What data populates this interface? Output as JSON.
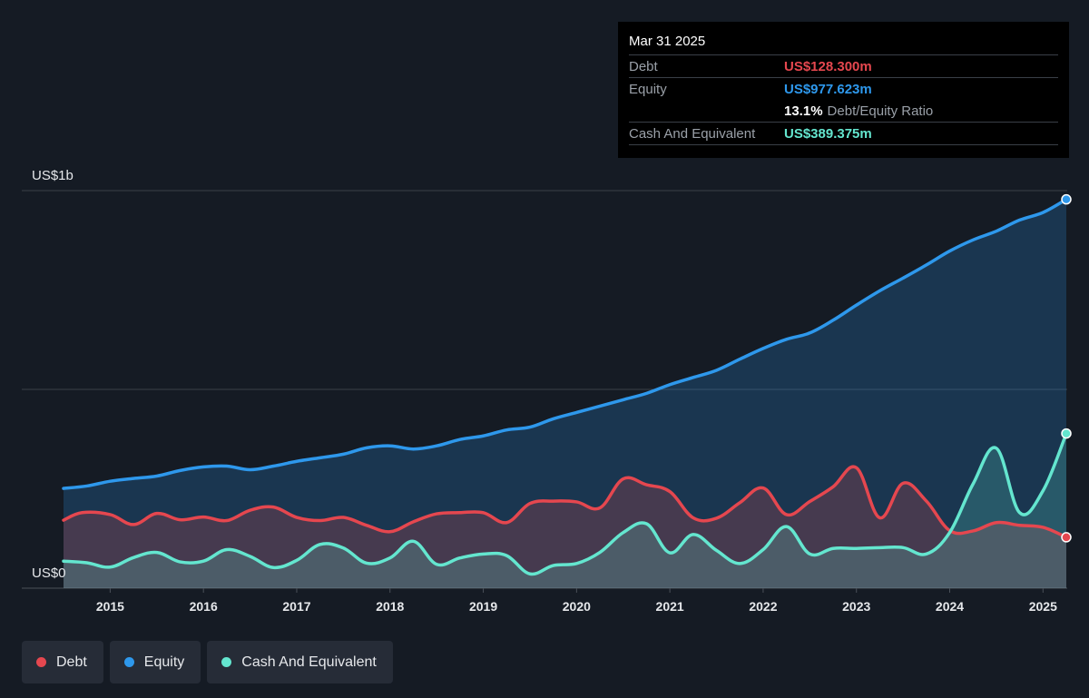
{
  "colors": {
    "debt": "#e5474f",
    "equity": "#2e98ec",
    "cash": "#64e6cf",
    "background": "#151b24",
    "tooltip_bg": "#000000"
  },
  "tooltip": {
    "date": "Mar 31 2025",
    "debt_label": "Debt",
    "debt_value": "US$128.300m",
    "equity_label": "Equity",
    "equity_value": "US$977.623m",
    "ratio_pct": "13.1%",
    "ratio_text": "Debt/Equity Ratio",
    "cash_label": "Cash And Equivalent",
    "cash_value": "US$389.375m"
  },
  "legend": [
    {
      "label": "Debt",
      "color": "#e5474f"
    },
    {
      "label": "Equity",
      "color": "#2e98ec"
    },
    {
      "label": "Cash And Equivalent",
      "color": "#64e6cf"
    }
  ],
  "chart_data": {
    "type": "area",
    "title": "",
    "xlabel": "",
    "ylabel": "",
    "x_range": [
      2014.5,
      2025.25
    ],
    "ylim": [
      0,
      1000
    ],
    "y_ticks": [
      {
        "value": 1000,
        "label": "US$1b"
      },
      {
        "value": 500,
        "label": ""
      },
      {
        "value": 0,
        "label": "US$0"
      }
    ],
    "x_ticks": [
      2015,
      2016,
      2017,
      2018,
      2019,
      2020,
      2021,
      2022,
      2023,
      2024,
      2025
    ],
    "x_tick_labels": [
      "2015",
      "2016",
      "2017",
      "2018",
      "2019",
      "2020",
      "2021",
      "2022",
      "2023",
      "2024",
      "2025"
    ],
    "grid": true,
    "legend_position": "bottom-left",
    "series": [
      {
        "name": "Equity",
        "color": "#2e98ec",
        "points": [
          [
            2014.5,
            251
          ],
          [
            2014.75,
            257
          ],
          [
            2015.0,
            269
          ],
          [
            2015.25,
            276
          ],
          [
            2015.5,
            282
          ],
          [
            2015.75,
            296
          ],
          [
            2016.0,
            305
          ],
          [
            2016.25,
            307
          ],
          [
            2016.5,
            298
          ],
          [
            2016.75,
            307
          ],
          [
            2017.0,
            319
          ],
          [
            2017.25,
            328
          ],
          [
            2017.5,
            337
          ],
          [
            2017.75,
            353
          ],
          [
            2018.0,
            358
          ],
          [
            2018.25,
            350
          ],
          [
            2018.5,
            358
          ],
          [
            2018.75,
            374
          ],
          [
            2019.0,
            383
          ],
          [
            2019.25,
            398
          ],
          [
            2019.5,
            405
          ],
          [
            2019.75,
            426
          ],
          [
            2020.0,
            442
          ],
          [
            2020.25,
            458
          ],
          [
            2020.5,
            474
          ],
          [
            2020.75,
            490
          ],
          [
            2021.0,
            512
          ],
          [
            2021.25,
            530
          ],
          [
            2021.5,
            548
          ],
          [
            2021.75,
            576
          ],
          [
            2022.0,
            603
          ],
          [
            2022.25,
            626
          ],
          [
            2022.5,
            642
          ],
          [
            2022.75,
            674
          ],
          [
            2023.0,
            712
          ],
          [
            2023.25,
            748
          ],
          [
            2023.5,
            780
          ],
          [
            2023.75,
            813
          ],
          [
            2024.0,
            848
          ],
          [
            2024.25,
            876
          ],
          [
            2024.5,
            898
          ],
          [
            2024.75,
            926
          ],
          [
            2025.0,
            945
          ],
          [
            2025.25,
            978
          ]
        ]
      },
      {
        "name": "Debt",
        "color": "#e5474f",
        "points": [
          [
            2014.5,
            171
          ],
          [
            2014.7,
            190
          ],
          [
            2015.0,
            185
          ],
          [
            2015.25,
            160
          ],
          [
            2015.5,
            188
          ],
          [
            2015.75,
            172
          ],
          [
            2016.0,
            179
          ],
          [
            2016.25,
            170
          ],
          [
            2016.5,
            196
          ],
          [
            2016.75,
            204
          ],
          [
            2017.0,
            178
          ],
          [
            2017.25,
            170
          ],
          [
            2017.5,
            178
          ],
          [
            2017.75,
            158
          ],
          [
            2018.0,
            142
          ],
          [
            2018.25,
            167
          ],
          [
            2018.5,
            187
          ],
          [
            2018.75,
            190
          ],
          [
            2019.0,
            190
          ],
          [
            2019.25,
            165
          ],
          [
            2019.5,
            213
          ],
          [
            2019.75,
            219
          ],
          [
            2020.0,
            217
          ],
          [
            2020.25,
            202
          ],
          [
            2020.5,
            275
          ],
          [
            2020.75,
            260
          ],
          [
            2021.0,
            243
          ],
          [
            2021.25,
            177
          ],
          [
            2021.5,
            176
          ],
          [
            2021.75,
            215
          ],
          [
            2022.0,
            252
          ],
          [
            2022.25,
            185
          ],
          [
            2022.5,
            218
          ],
          [
            2022.75,
            255
          ],
          [
            2023.0,
            303
          ],
          [
            2023.25,
            177
          ],
          [
            2023.5,
            264
          ],
          [
            2023.75,
            219
          ],
          [
            2024.0,
            145
          ],
          [
            2024.25,
            144
          ],
          [
            2024.5,
            165
          ],
          [
            2024.75,
            158
          ],
          [
            2025.0,
            153
          ],
          [
            2025.25,
            128
          ]
        ]
      },
      {
        "name": "Cash And Equivalent",
        "color": "#64e6cf",
        "points": [
          [
            2014.5,
            68
          ],
          [
            2014.75,
            64
          ],
          [
            2015.0,
            53
          ],
          [
            2015.25,
            77
          ],
          [
            2015.5,
            90
          ],
          [
            2015.75,
            66
          ],
          [
            2016.0,
            68
          ],
          [
            2016.25,
            97
          ],
          [
            2016.5,
            80
          ],
          [
            2016.75,
            52
          ],
          [
            2017.0,
            70
          ],
          [
            2017.25,
            110
          ],
          [
            2017.5,
            101
          ],
          [
            2017.75,
            63
          ],
          [
            2018.0,
            76
          ],
          [
            2018.25,
            118
          ],
          [
            2018.5,
            60
          ],
          [
            2018.75,
            76
          ],
          [
            2019.0,
            86
          ],
          [
            2019.25,
            82
          ],
          [
            2019.5,
            36
          ],
          [
            2019.75,
            57
          ],
          [
            2020.0,
            62
          ],
          [
            2020.25,
            90
          ],
          [
            2020.5,
            140
          ],
          [
            2020.75,
            162
          ],
          [
            2021.0,
            89
          ],
          [
            2021.25,
            135
          ],
          [
            2021.5,
            95
          ],
          [
            2021.75,
            62
          ],
          [
            2022.0,
            97
          ],
          [
            2022.25,
            155
          ],
          [
            2022.5,
            86
          ],
          [
            2022.75,
            100
          ],
          [
            2023.0,
            100
          ],
          [
            2023.25,
            102
          ],
          [
            2023.5,
            102
          ],
          [
            2023.75,
            86
          ],
          [
            2024.0,
            140
          ],
          [
            2024.25,
            262
          ],
          [
            2024.5,
            352
          ],
          [
            2024.75,
            190
          ],
          [
            2025.0,
            245
          ],
          [
            2025.25,
            389
          ]
        ]
      }
    ]
  }
}
